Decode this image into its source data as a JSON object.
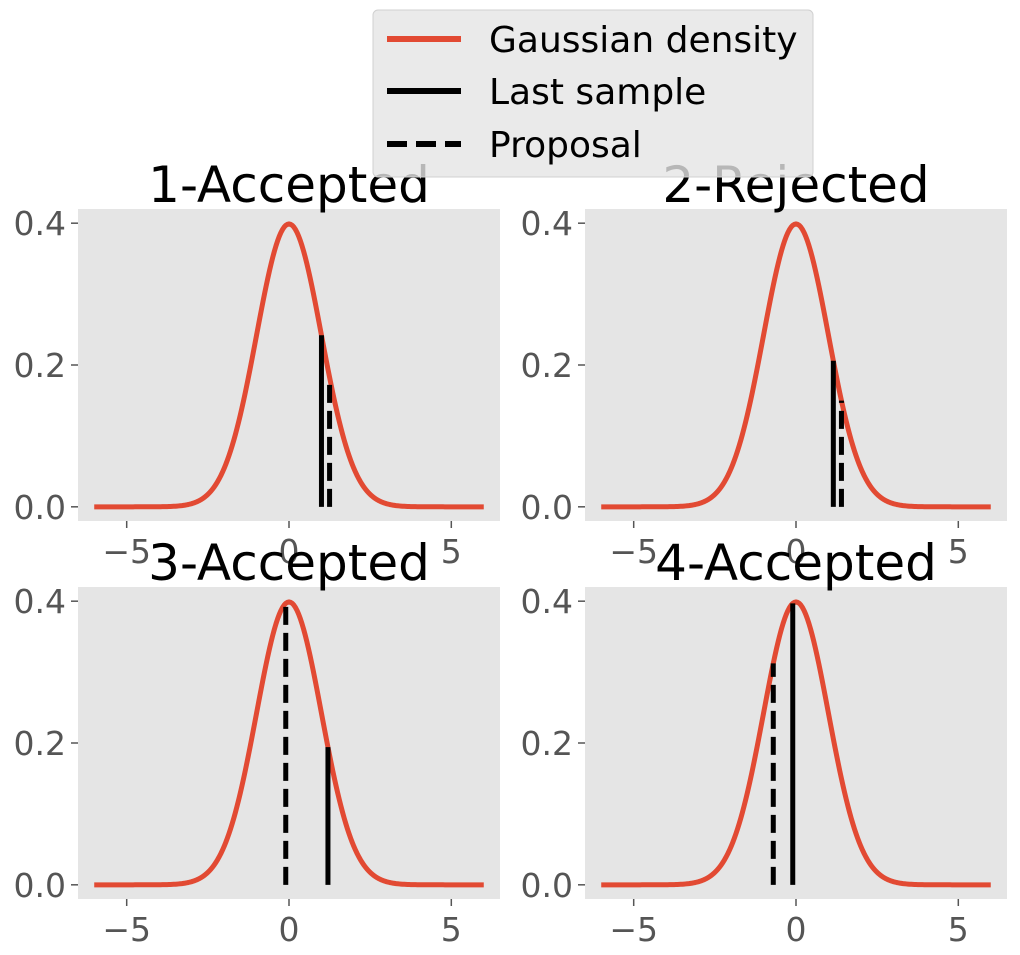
{
  "colors": {
    "axes_bg": "#E5E5E5",
    "density": "#E24A33",
    "sample_line": "#000000",
    "tick_text": "#555555",
    "grid": "none"
  },
  "legend": {
    "placement": "top-center",
    "entries": [
      {
        "label": "Gaussian density",
        "style": "solid",
        "color": "#E24A33"
      },
      {
        "label": "Last sample",
        "style": "solid",
        "color": "#000000"
      },
      {
        "label": "Proposal",
        "style": "dashed",
        "color": "#000000"
      }
    ]
  },
  "chart_data": [
    {
      "type": "line",
      "title": "1-Accepted",
      "xlim": [
        -6.5,
        6.5
      ],
      "ylim": [
        -0.02,
        0.42
      ],
      "xticks": [
        "−5",
        "0",
        "5"
      ],
      "xtick_values": [
        -5,
        0,
        5
      ],
      "yticks": [
        "0.0",
        "0.2",
        "0.4"
      ],
      "ytick_values": [
        0.0,
        0.2,
        0.4
      ],
      "series": [
        {
          "kind": "density",
          "x_range": [
            -6,
            6
          ],
          "function": "standard normal pdf"
        },
        {
          "kind": "last_sample",
          "x": 1.0
        },
        {
          "kind": "proposal",
          "x": 1.25
        }
      ]
    },
    {
      "type": "line",
      "title": "2-Rejected",
      "xlim": [
        -6.5,
        6.5
      ],
      "ylim": [
        -0.02,
        0.42
      ],
      "xticks": [
        "−5",
        "0",
        "5"
      ],
      "xtick_values": [
        -5,
        0,
        5
      ],
      "yticks": [
        "0.0",
        "0.2",
        "0.4"
      ],
      "ytick_values": [
        0.0,
        0.2,
        0.4
      ],
      "series": [
        {
          "kind": "density",
          "x_range": [
            -6,
            6
          ],
          "function": "standard normal pdf"
        },
        {
          "kind": "last_sample",
          "x": 1.15
        },
        {
          "kind": "proposal",
          "x": 1.4
        }
      ]
    },
    {
      "type": "line",
      "title": "3-Accepted",
      "xlim": [
        -6.5,
        6.5
      ],
      "ylim": [
        -0.02,
        0.42
      ],
      "xticks": [
        "−5",
        "0",
        "5"
      ],
      "xtick_values": [
        -5,
        0,
        5
      ],
      "yticks": [
        "0.0",
        "0.2",
        "0.4"
      ],
      "ytick_values": [
        0.0,
        0.2,
        0.4
      ],
      "series": [
        {
          "kind": "density",
          "x_range": [
            -6,
            6
          ],
          "function": "standard normal pdf"
        },
        {
          "kind": "last_sample",
          "x": 1.2
        },
        {
          "kind": "proposal",
          "x": -0.1
        }
      ]
    },
    {
      "type": "line",
      "title": "4-Accepted",
      "xlim": [
        -6.5,
        6.5
      ],
      "ylim": [
        -0.02,
        0.42
      ],
      "xticks": [
        "−5",
        "0",
        "5"
      ],
      "xtick_values": [
        -5,
        0,
        5
      ],
      "yticks": [
        "0.0",
        "0.2",
        "0.4"
      ],
      "ytick_values": [
        0.0,
        0.2,
        0.4
      ],
      "series": [
        {
          "kind": "density",
          "x_range": [
            -6,
            6
          ],
          "function": "standard normal pdf"
        },
        {
          "kind": "last_sample",
          "x": -0.1
        },
        {
          "kind": "proposal",
          "x": -0.7
        }
      ]
    }
  ]
}
